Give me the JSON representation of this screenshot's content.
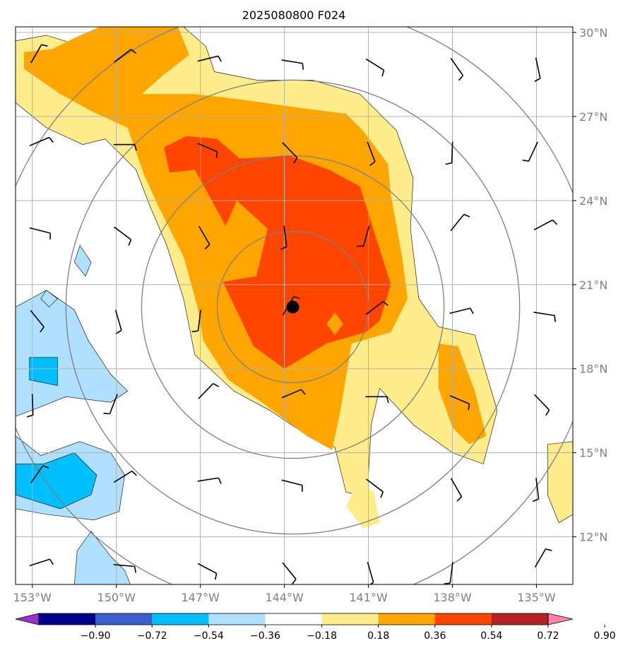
{
  "chart_data": {
    "type": "heatmap",
    "title": "2025080800 F024",
    "x_ticks": [
      "153°W",
      "150°W",
      "147°W",
      "144°W",
      "141°W",
      "138°W",
      "135°W"
    ],
    "x_tick_values": [
      -153,
      -150,
      -147,
      -144,
      -141,
      -138,
      -135
    ],
    "y_ticks": [
      "30°N",
      "27°N",
      "24°N",
      "21°N",
      "18°N",
      "15°N",
      "12°N"
    ],
    "y_tick_values": [
      30,
      27,
      24,
      21,
      18,
      15,
      12
    ],
    "xlim": [
      -153.6,
      -133.7
    ],
    "ylim": [
      10.3,
      30.2
    ],
    "grid": true,
    "center_marker": {
      "lon": -143.7,
      "lat": 20.2
    },
    "range_rings_deg": [
      2.7,
      5.4,
      8.1,
      10.8
    ],
    "colorbar": {
      "boundaries": [
        -0.9,
        -0.72,
        -0.54,
        -0.36,
        -0.18,
        0.18,
        0.36,
        0.54,
        0.72,
        0.9
      ],
      "labels": [
        "−0.90",
        "−0.72",
        "−0.54",
        "−0.36",
        "−0.18",
        "0.18",
        "0.36",
        "0.54",
        "0.72",
        "0.90"
      ],
      "colors": [
        "#9932cc",
        "#00008b",
        "#3a5fcd",
        "#00bfff",
        "#b0e0ff",
        "#ffffff",
        "#ffec8b",
        "#ffa500",
        "#ff4500",
        "#b22222",
        "#ff82ab"
      ]
    },
    "fill_regions": [
      {
        "level": 0.18,
        "color": "#ffec8b",
        "points": [
          [
            -153.6,
            29.7
          ],
          [
            -152.5,
            29.9
          ],
          [
            -151.2,
            29.5
          ],
          [
            -150,
            30.2
          ],
          [
            -147.6,
            30.2
          ],
          [
            -146.8,
            29.5
          ],
          [
            -146.5,
            28.6
          ],
          [
            -145,
            28.3
          ],
          [
            -143,
            28.3
          ],
          [
            -141.3,
            27.8
          ],
          [
            -140,
            26.5
          ],
          [
            -139.4,
            24.8
          ],
          [
            -139.5,
            23
          ],
          [
            -139.2,
            20.5
          ],
          [
            -138.5,
            19.5
          ],
          [
            -137.2,
            19.2
          ],
          [
            -136.4,
            16.5
          ],
          [
            -136.9,
            14.6
          ],
          [
            -138,
            15
          ],
          [
            -139.4,
            16
          ],
          [
            -140.6,
            17.3
          ],
          [
            -140.9,
            16
          ],
          [
            -141,
            14.2
          ],
          [
            -141,
            13.4
          ],
          [
            -141.8,
            13.6
          ],
          [
            -142.2,
            15.2
          ],
          [
            -143,
            15.5
          ],
          [
            -144.5,
            16.5
          ],
          [
            -145.8,
            17.2
          ],
          [
            -147.2,
            18.5
          ],
          [
            -147.6,
            20.5
          ],
          [
            -148.2,
            22.4
          ],
          [
            -148.8,
            23.8
          ],
          [
            -149.3,
            25.1
          ],
          [
            -150.4,
            26.2
          ],
          [
            -151.2,
            26
          ],
          [
            -152.5,
            26.6
          ],
          [
            -153.6,
            27.5
          ]
        ]
      },
      {
        "level": 0.36,
        "color": "#ffa500",
        "points": [
          [
            -153.3,
            29.3
          ],
          [
            -152.3,
            29.4
          ],
          [
            -151.5,
            29.8
          ],
          [
            -150.6,
            30.2
          ],
          [
            -147.8,
            30.2
          ],
          [
            -147.4,
            29.2
          ],
          [
            -148.3,
            28.5
          ],
          [
            -149.1,
            27.8
          ],
          [
            -147.2,
            27.8
          ],
          [
            -145.5,
            27.6
          ],
          [
            -143.4,
            27.3
          ],
          [
            -141.8,
            27.1
          ],
          [
            -141.2,
            26.5
          ],
          [
            -140.3,
            25.3
          ],
          [
            -140.2,
            24.2
          ],
          [
            -139.8,
            22
          ],
          [
            -139.6,
            20.5
          ],
          [
            -140.2,
            19.3
          ],
          [
            -141.6,
            18.9
          ],
          [
            -142,
            16.5
          ],
          [
            -142.3,
            15.1
          ],
          [
            -143.2,
            15.6
          ],
          [
            -144.8,
            16.8
          ],
          [
            -146,
            17.6
          ],
          [
            -146.9,
            19
          ],
          [
            -147.1,
            20.2
          ],
          [
            -147.6,
            22
          ],
          [
            -148.5,
            23.8
          ],
          [
            -149,
            24.9
          ],
          [
            -149.6,
            26.6
          ],
          [
            -150.9,
            27.2
          ],
          [
            -152,
            27.8
          ],
          [
            -153.3,
            28.7
          ]
        ]
      },
      {
        "level": 0.36,
        "color": "#ffa500",
        "points": [
          [
            -138.5,
            18.9
          ],
          [
            -137.8,
            18.8
          ],
          [
            -137.2,
            17.2
          ],
          [
            -136.8,
            15.6
          ],
          [
            -137.4,
            15.3
          ],
          [
            -138,
            15.9
          ],
          [
            -138.5,
            17.3
          ]
        ]
      },
      {
        "level": 0.54,
        "color": "#ff4500",
        "points": [
          [
            -148.3,
            25.9
          ],
          [
            -147.5,
            26.3
          ],
          [
            -146.4,
            26.2
          ],
          [
            -145.6,
            25.5
          ],
          [
            -143.8,
            25.6
          ],
          [
            -142.4,
            25.1
          ],
          [
            -141.3,
            24.5
          ],
          [
            -140.8,
            22.9
          ],
          [
            -140.2,
            21
          ],
          [
            -140.6,
            19.7
          ],
          [
            -141.1,
            19.3
          ],
          [
            -142.5,
            18.9
          ],
          [
            -144,
            18
          ],
          [
            -145.1,
            18.8
          ],
          [
            -146.2,
            21.1
          ],
          [
            -145,
            21.3
          ],
          [
            -144.6,
            23
          ],
          [
            -145.7,
            24
          ],
          [
            -146.1,
            23.1
          ],
          [
            -147.2,
            25.1
          ],
          [
            -148.1,
            25
          ]
        ]
      }
    ],
    "wind_barbs": [
      {
        "lon": -153,
        "lat": 29.0
      },
      {
        "lon": -150,
        "lat": 29.0
      },
      {
        "lon": -147,
        "lat": 29.0
      },
      {
        "lon": -144,
        "lat": 29.0
      },
      {
        "lon": -141,
        "lat": 29.0
      },
      {
        "lon": -138,
        "lat": 29.0
      },
      {
        "lon": -135,
        "lat": 29.0
      },
      {
        "lon": -153,
        "lat": 26.0
      },
      {
        "lon": -150,
        "lat": 26.0
      },
      {
        "lon": -147,
        "lat": 26.0
      },
      {
        "lon": -144,
        "lat": 26.0
      },
      {
        "lon": -141,
        "lat": 26.0
      },
      {
        "lon": -138,
        "lat": 26.0
      },
      {
        "lon": -135,
        "lat": 26.0
      },
      {
        "lon": -153,
        "lat": 23.0
      },
      {
        "lon": -150,
        "lat": 23.0
      },
      {
        "lon": -147,
        "lat": 23.0
      },
      {
        "lon": -144,
        "lat": 23.0
      },
      {
        "lon": -141,
        "lat": 23.0
      },
      {
        "lon": -138,
        "lat": 23.0
      },
      {
        "lon": -135,
        "lat": 23.0
      },
      {
        "lon": -153,
        "lat": 20.0
      },
      {
        "lon": -150,
        "lat": 20.0
      },
      {
        "lon": -147,
        "lat": 20.0
      },
      {
        "lon": -144,
        "lat": 20.0
      },
      {
        "lon": -141,
        "lat": 20.0
      },
      {
        "lon": -138,
        "lat": 20.0
      },
      {
        "lon": -135,
        "lat": 20.0
      },
      {
        "lon": -153,
        "lat": 17.0
      },
      {
        "lon": -150,
        "lat": 17.0
      },
      {
        "lon": -147,
        "lat": 17.0
      },
      {
        "lon": -144,
        "lat": 17.0
      },
      {
        "lon": -141,
        "lat": 17.0
      },
      {
        "lon": -138,
        "lat": 17.0
      },
      {
        "lon": -135,
        "lat": 17.0
      },
      {
        "lon": -153,
        "lat": 14.0
      },
      {
        "lon": -150,
        "lat": 14.0
      },
      {
        "lon": -147,
        "lat": 14.0
      },
      {
        "lon": -144,
        "lat": 14.0
      },
      {
        "lon": -141,
        "lat": 14.0
      },
      {
        "lon": -138,
        "lat": 14.0
      },
      {
        "lon": -135,
        "lat": 14.0
      },
      {
        "lon": -153,
        "lat": 11.0
      },
      {
        "lon": -150,
        "lat": 11.0
      },
      {
        "lon": -147,
        "lat": 11.0
      },
      {
        "lon": -144,
        "lat": 11.0
      },
      {
        "lon": -141,
        "lat": 11.0
      },
      {
        "lon": -138,
        "lat": 11.0
      },
      {
        "lon": -135,
        "lat": 11.0
      }
    ]
  }
}
